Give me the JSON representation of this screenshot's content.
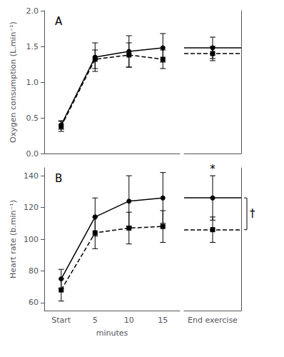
{
  "chart_data": [
    {
      "type": "line",
      "title": "A",
      "ylabel": "Oxygen consumption (L.min⁻¹)",
      "categories": [
        "Start",
        "5",
        "10",
        "15"
      ],
      "end_categories": [
        "End exercise"
      ],
      "ylim": [
        0.0,
        2.0
      ],
      "yticks": [
        {
          "value": 0,
          "label": "0.0"
        },
        0.5,
        {
          "value": 1,
          "label": "1.0"
        },
        1.5,
        {
          "value": 2,
          "label": "2.0"
        }
      ],
      "grid": false,
      "tick_labels": "y",
      "series": [
        {
          "color": "#000000",
          "marker": "square",
          "line_style": "dashed",
          "values": [
            0.38,
            1.32,
            1.38,
            1.32
          ],
          "errors": [
            0.07,
            0.13,
            0.17,
            0.13
          ],
          "end_values": [
            1.4
          ],
          "end_errors": [
            0.1
          ]
        },
        {
          "color": "#000000",
          "marker": "circle",
          "line_style": "solid",
          "values": [
            0.4,
            1.35,
            1.43,
            1.48
          ],
          "errors": [
            0.06,
            0.2,
            0.22,
            0.2
          ],
          "end_values": [
            1.48
          ],
          "end_errors": [
            0.15
          ]
        }
      ]
    },
    {
      "type": "line",
      "title": "B",
      "ylabel": "Heart rate (b.min⁻¹)",
      "xlabel": "minutes",
      "categories": [
        "Start",
        "5",
        "10",
        "15"
      ],
      "end_categories": [
        "End exercise"
      ],
      "ylim": [
        55,
        145
      ],
      "yticks": [
        60,
        80,
        100,
        120,
        140
      ],
      "grid": false,
      "end_bracket": "†",
      "series": [
        {
          "color": "#000000",
          "marker": "square",
          "line_style": "dashed",
          "values": [
            68,
            104,
            107,
            108
          ],
          "errors": [
            7,
            10,
            10,
            10
          ],
          "end_values": [
            106
          ],
          "end_errors": [
            8
          ]
        },
        {
          "color": "#000000",
          "marker": "circle",
          "line_style": "solid",
          "values": [
            75,
            114,
            124,
            126
          ],
          "errors": [
            6,
            12,
            16,
            16
          ],
          "end_values": [
            126
          ],
          "end_errors": [
            14
          ],
          "end_annotation": "*"
        }
      ]
    }
  ]
}
